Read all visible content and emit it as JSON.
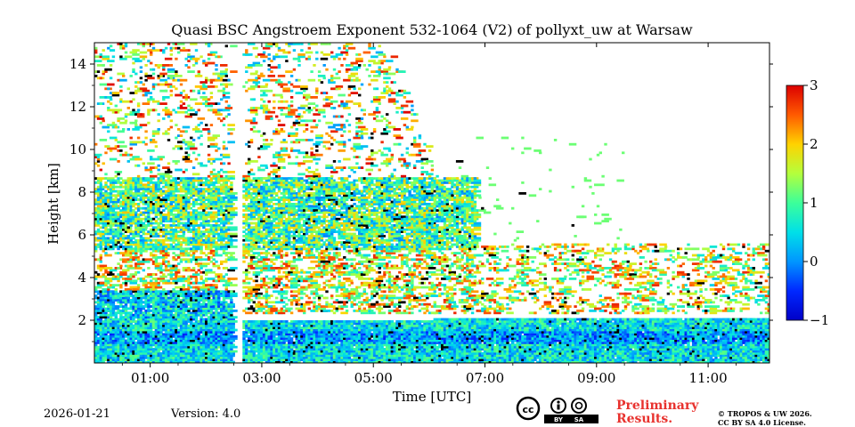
{
  "chart_data": {
    "type": "heatmap",
    "title": "Quasi BSC Angstroem Exponent 532-1064 (V2) of pollyxt_uw at Warsaw",
    "xlabel": "Time [UTC]",
    "ylabel": "Height [km]",
    "xlim_hours": [
      0.0,
      12.1
    ],
    "ylim_km": [
      0.0,
      15.0
    ],
    "x_ticks": [
      {
        "hour": 1,
        "label": "01:00"
      },
      {
        "hour": 3,
        "label": "03:00"
      },
      {
        "hour": 5,
        "label": "05:00"
      },
      {
        "hour": 7,
        "label": "07:00"
      },
      {
        "hour": 9,
        "label": "09:00"
      },
      {
        "hour": 11,
        "label": "11:00"
      }
    ],
    "y_ticks": [
      {
        "value": 2,
        "label": "2"
      },
      {
        "value": 4,
        "label": "4"
      },
      {
        "value": 6,
        "label": "6"
      },
      {
        "value": 8,
        "label": "8"
      },
      {
        "value": 10,
        "label": "10"
      },
      {
        "value": 12,
        "label": "12"
      },
      {
        "value": 14,
        "label": "14"
      }
    ],
    "colorbar": {
      "range": [
        -1,
        3
      ],
      "ticks": [
        {
          "value": -1,
          "label": "−1"
        },
        {
          "value": 0,
          "label": "0"
        },
        {
          "value": 1,
          "label": "1"
        },
        {
          "value": 2,
          "label": "2"
        },
        {
          "value": 3,
          "label": "3"
        }
      ],
      "colormap": "jet"
    },
    "data_gap_hours": [
      2.5,
      2.65
    ],
    "regimes": [
      {
        "name": "boundary layer",
        "t_start": 0.0,
        "t_end": 12.1,
        "h_base_km": 0.0,
        "h_top_start_km": 1.9,
        "h_top_end_km": 2.1,
        "value_mean": 0.5
      },
      {
        "name": "residual layer",
        "t_start": 0.0,
        "t_end": 2.5,
        "h_base_km": 1.9,
        "h_top_km": 3.4,
        "value_mean": 0.4
      },
      {
        "name": "elevated aerosol layer",
        "t_start": 0.0,
        "t_end": 6.8,
        "h_base_km": 5.2,
        "h_top_km": 8.6,
        "value_mean": 1.0
      },
      {
        "name": "mid-level scattered signal",
        "t_start": 0.0,
        "t_end": 12.1,
        "h_base_km": 2.3,
        "h_top_km": 5.5,
        "value_mean": 1.6
      },
      {
        "name": "upper noisy signal",
        "t_start": 0.0,
        "t_end": 6.2,
        "h_base_km": 8.6,
        "h_top_km": 15.0,
        "value_mean": 1.5
      }
    ]
  },
  "footer": {
    "date": "2026-01-21",
    "version": "Version: 4.0",
    "preliminary_line1": "Preliminary",
    "preliminary_line2": "Results.",
    "copyright_line1": "© TROPOS & UW 2026.",
    "copyright_line2": "CC BY SA 4.0 License.",
    "license_by": "BY",
    "license_sa": "SA"
  }
}
